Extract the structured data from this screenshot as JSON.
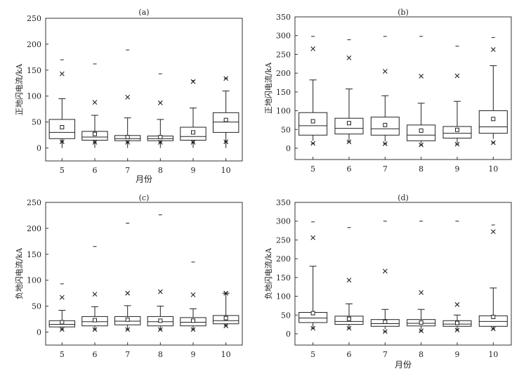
{
  "chart_data": [
    {
      "type": "box",
      "title": "(a)",
      "xlabel": "月份",
      "ylabel": "正地闪电流/kA",
      "ylim": [
        -25,
        250
      ],
      "yticks": [
        0,
        50,
        100,
        150,
        200,
        250
      ],
      "categories": [
        "5",
        "6",
        "7",
        "8",
        "9",
        "10"
      ],
      "boxes": [
        {
          "whisker_low": 0,
          "q1": 18,
          "median": 30,
          "q3": 55,
          "whisker_high": 95,
          "mean": 40,
          "p1": 12,
          "p99": 143,
          "min": 12,
          "max": 170
        },
        {
          "whisker_low": 0,
          "q1": 15,
          "median": 21,
          "q3": 32,
          "whisker_high": 63,
          "mean": 27,
          "p1": 11,
          "p99": 88,
          "min": 11,
          "max": 162
        },
        {
          "whisker_low": 0,
          "q1": 14,
          "median": 18,
          "q3": 24,
          "whisker_high": 58,
          "mean": 21,
          "p1": 11,
          "p99": 98,
          "min": 11,
          "max": 189
        },
        {
          "whisker_low": 0,
          "q1": 14,
          "median": 18,
          "q3": 23,
          "whisker_high": 55,
          "mean": 21,
          "p1": 11,
          "p99": 87,
          "min": 11,
          "max": 143
        },
        {
          "whisker_low": 0,
          "q1": 15,
          "median": 22,
          "q3": 40,
          "whisker_high": 77,
          "mean": 30,
          "p1": 11,
          "p99": 128,
          "min": 11,
          "max": 130
        },
        {
          "whisker_low": 0,
          "q1": 30,
          "median": 50,
          "q3": 68,
          "whisker_high": 110,
          "mean": 54,
          "p1": 12,
          "p99": 134,
          "min": 12,
          "max": 134
        }
      ]
    },
    {
      "type": "box",
      "title": "(b)",
      "xlabel": "",
      "ylabel": "正地闪电流/kA",
      "ylim": [
        -30,
        350
      ],
      "yticks": [
        0,
        50,
        100,
        150,
        200,
        250,
        300,
        350
      ],
      "categories": [
        "5",
        "6",
        "7",
        "8",
        "9",
        "10"
      ],
      "boxes": [
        {
          "whisker_low": 20,
          "q1": 35,
          "median": 60,
          "q3": 95,
          "whisker_high": 182,
          "mean": 72,
          "p1": 13,
          "p99": 265,
          "min": 13,
          "max": 298
        },
        {
          "whisker_low": 20,
          "q1": 38,
          "median": 53,
          "q3": 80,
          "whisker_high": 158,
          "mean": 67,
          "p1": 17,
          "p99": 241,
          "min": 17,
          "max": 289
        },
        {
          "whisker_low": 18,
          "q1": 35,
          "median": 52,
          "q3": 83,
          "whisker_high": 140,
          "mean": 62,
          "p1": 12,
          "p99": 205,
          "min": 12,
          "max": 298
        },
        {
          "whisker_low": 13,
          "q1": 20,
          "median": 35,
          "q3": 62,
          "whisker_high": 120,
          "mean": 47,
          "p1": 9,
          "p99": 192,
          "min": 9,
          "max": 298
        },
        {
          "whisker_low": 15,
          "q1": 27,
          "median": 40,
          "q3": 58,
          "whisker_high": 125,
          "mean": 49,
          "p1": 11,
          "p99": 193,
          "min": 11,
          "max": 272
        },
        {
          "whisker_low": 25,
          "q1": 40,
          "median": 57,
          "q3": 100,
          "whisker_high": 220,
          "mean": 78,
          "p1": 15,
          "p99": 263,
          "min": 15,
          "max": 295
        }
      ]
    },
    {
      "type": "box",
      "title": "(c)",
      "xlabel": "",
      "ylabel": "负地闪电流/kA",
      "ylim": [
        -25,
        250
      ],
      "yticks": [
        0,
        50,
        100,
        150,
        200,
        250
      ],
      "categories": [
        "5",
        "6",
        "7",
        "8",
        "9",
        "10"
      ],
      "boxes": [
        {
          "whisker_low": 5,
          "q1": 10,
          "median": 15,
          "q3": 22,
          "whisker_high": 42,
          "mean": 19,
          "p1": 5,
          "p99": 67,
          "min": 5,
          "max": 93
        },
        {
          "whisker_low": 5,
          "q1": 12,
          "median": 20,
          "q3": 30,
          "whisker_high": 49,
          "mean": 23,
          "p1": 5,
          "p99": 73,
          "min": 5,
          "max": 165
        },
        {
          "whisker_low": 5,
          "q1": 14,
          "median": 21,
          "q3": 30,
          "whisker_high": 51,
          "mean": 24,
          "p1": 5,
          "p99": 75,
          "min": 5,
          "max": 210
        },
        {
          "whisker_low": 5,
          "q1": 12,
          "median": 20,
          "q3": 30,
          "whisker_high": 50,
          "mean": 22,
          "p1": 5,
          "p99": 78,
          "min": 5,
          "max": 226
        },
        {
          "whisker_low": 5,
          "q1": 12,
          "median": 19,
          "q3": 28,
          "whisker_high": 45,
          "mean": 22,
          "p1": 5,
          "p99": 72,
          "min": 5,
          "max": 135
        },
        {
          "whisker_low": 12,
          "q1": 16,
          "median": 22,
          "q3": 32,
          "whisker_high": 75,
          "mean": 27,
          "p1": 12,
          "p99": 75,
          "min": 12,
          "max": 75
        }
      ]
    },
    {
      "type": "box",
      "title": "(d)",
      "xlabel": "月份",
      "ylabel": "负地闪电流/kA",
      "ylim": [
        -30,
        350
      ],
      "yticks": [
        0,
        50,
        100,
        150,
        200,
        250,
        300,
        350
      ],
      "categories": [
        "5",
        "6",
        "7",
        "8",
        "9",
        "10"
      ],
      "boxes": [
        {
          "whisker_low": 18,
          "q1": 30,
          "median": 42,
          "q3": 57,
          "whisker_high": 180,
          "mean": 55,
          "p1": 15,
          "p99": 256,
          "min": 15,
          "max": 298
        },
        {
          "whisker_low": 18,
          "q1": 25,
          "median": 33,
          "q3": 47,
          "whisker_high": 80,
          "mean": 40,
          "p1": 15,
          "p99": 143,
          "min": 15,
          "max": 283
        },
        {
          "whisker_low": 12,
          "q1": 20,
          "median": 27,
          "q3": 38,
          "whisker_high": 65,
          "mean": 32,
          "p1": 6,
          "p99": 167,
          "min": 6,
          "max": 300
        },
        {
          "whisker_low": 12,
          "q1": 21,
          "median": 28,
          "q3": 38,
          "whisker_high": 65,
          "mean": 30,
          "p1": 8,
          "p99": 110,
          "min": 8,
          "max": 300
        },
        {
          "whisker_low": 12,
          "q1": 20,
          "median": 26,
          "q3": 35,
          "whisker_high": 50,
          "mean": 29,
          "p1": 10,
          "p99": 78,
          "min": 10,
          "max": 300
        },
        {
          "whisker_low": 15,
          "q1": 20,
          "median": 33,
          "q3": 48,
          "whisker_high": 122,
          "mean": 45,
          "p1": 13,
          "p99": 272,
          "min": 13,
          "max": 290
        }
      ]
    }
  ]
}
